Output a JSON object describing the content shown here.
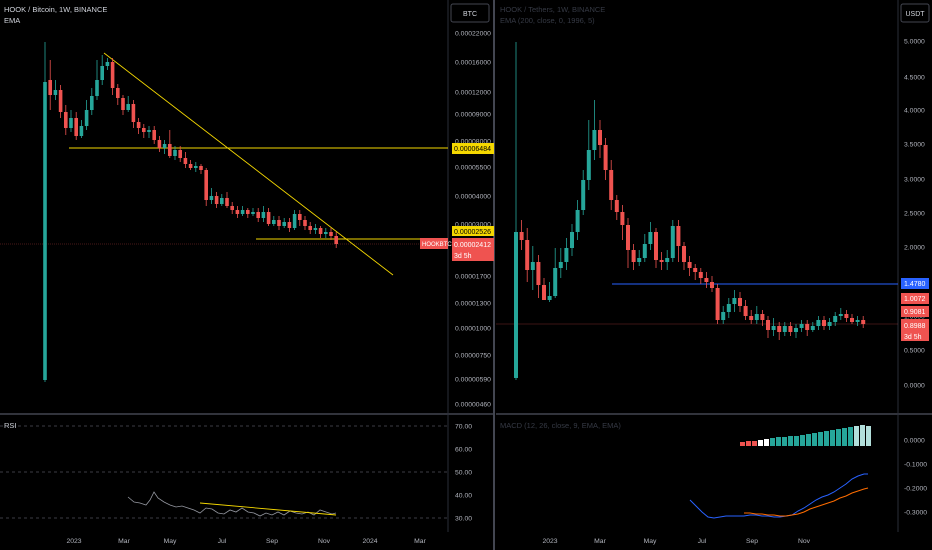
{
  "left": {
    "title": "HOOK / Bitcoin, 1W, BINANCE",
    "indicator": "EMA",
    "currency": "BTC",
    "yticks": [
      "0.00022000",
      "0.00016000",
      "0.00012000",
      "0.00009000",
      "0.00008000",
      "0.00005500",
      "0.00004000",
      "0.00003000",
      "0.00001700",
      "0.00001300",
      "0.00001000",
      "0.00000750",
      "0.00000590",
      "0.00000460"
    ],
    "hline_label": "0.00006484",
    "hline2_label": "0.00002526",
    "price_label": "0.00002412",
    "price_ticker": "HOOKBTC",
    "countdown": "3d 5h",
    "xticks": [
      "2023",
      "Mar",
      "May",
      "Jul",
      "Sep",
      "Nov",
      "2024",
      "Mar"
    ],
    "rsi": {
      "title": "RSI",
      "ticks": [
        "70.00",
        "60.00",
        "50.00",
        "40.00",
        "30.00"
      ]
    }
  },
  "right": {
    "title": "HOOK / Tethers, 1W, BINANCE",
    "indicator": "EMA (200, close, 0, 1996, 5)",
    "currency": "USDT",
    "yticks": [
      "5.0000",
      "4.5000",
      "4.0000",
      "3.5000",
      "3.0000",
      "2.5000",
      "2.0000",
      "1.5000",
      "1.0000",
      "0.5000",
      "0.0000"
    ],
    "hline_label": "1.4780",
    "price_label_1": "1.0072",
    "price_label_2": "0.9081",
    "price_label_3": "0.8988",
    "countdown": "3d 5h",
    "xticks": [
      "2023",
      "Mar",
      "May",
      "Jul",
      "Sep",
      "Nov"
    ],
    "macd": {
      "title": "MACD (12, 26, close, 9, EMA, EMA)",
      "ticks": [
        "0.0000",
        "-0.1000",
        "-0.2000",
        "-0.3000"
      ]
    }
  },
  "colors": {
    "up": "#26a69a",
    "down": "#ef5350",
    "yellow": "#f5d800",
    "blue": "#2962ff",
    "orange": "#ff6d00",
    "grid": "#2a2e39"
  },
  "chart_data": [
    {
      "type": "candlestick",
      "series": [
        {
          "name": "HOOK / Bitcoin, 1W, BINANCE"
        }
      ],
      "y_scale": "log"
    },
    {
      "type": "candlestick",
      "series": [
        {
          "name": "HOOK / Tethers, 1W, BINANCE"
        }
      ]
    }
  ]
}
